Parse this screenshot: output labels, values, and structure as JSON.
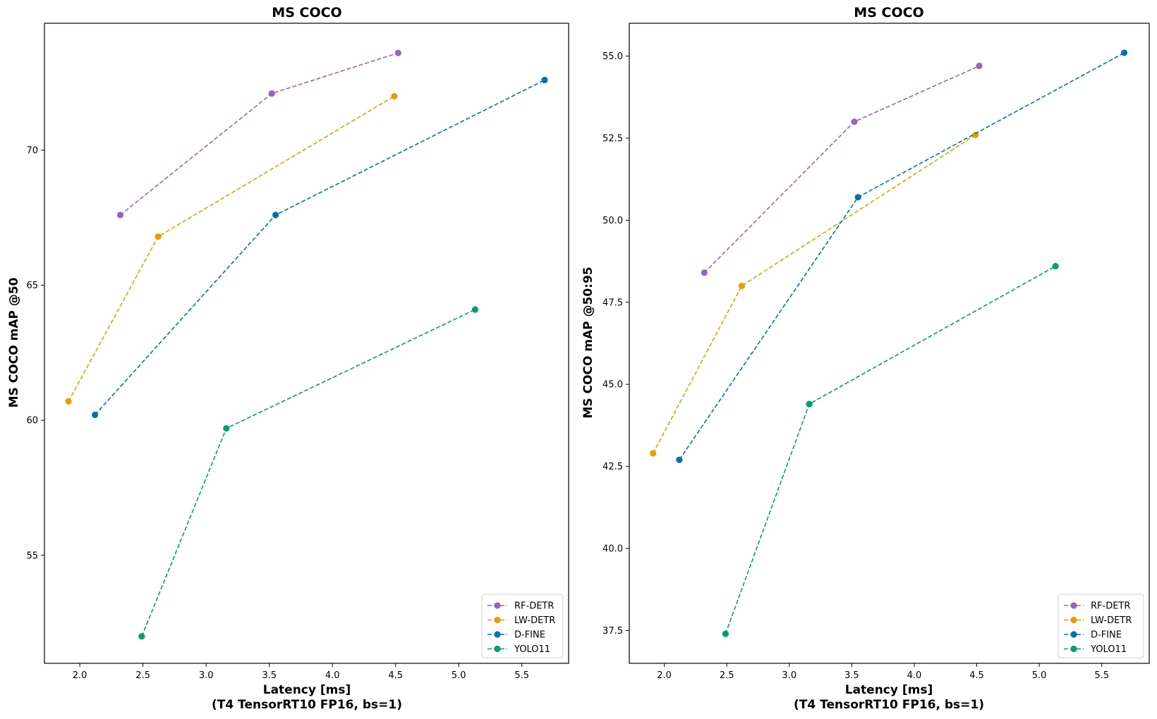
{
  "chart_data": [
    {
      "type": "line",
      "title": "MS COCO",
      "xlabel": "Latency [ms]",
      "xlabel2": "(T4 TensorRT10 FP16, bs=1)",
      "ylabel": "MS COCO mAP @50",
      "xlim": [
        1.72,
        5.87
      ],
      "ylim": [
        51.0,
        74.7
      ],
      "xticks": [
        "2.0",
        "2.5",
        "3.0",
        "3.5",
        "4.0",
        "4.5",
        "5.0",
        "5.5"
      ],
      "yticks": [
        "55",
        "60",
        "65",
        "70"
      ],
      "grid": false,
      "legend_position": "bottom-right",
      "series": [
        {
          "name": "RF-DETR",
          "color": "#9467bd",
          "x": [
            2.32,
            3.52,
            4.52
          ],
          "y": [
            67.6,
            72.1,
            73.6
          ]
        },
        {
          "name": "LW-DETR",
          "color": "#e69f00",
          "x": [
            1.91,
            2.62,
            4.49
          ],
          "y": [
            60.7,
            66.8,
            72.0
          ]
        },
        {
          "name": "D-FINE",
          "color": "#0072b2",
          "x": [
            2.12,
            3.55,
            5.68
          ],
          "y": [
            60.2,
            67.6,
            72.6
          ]
        },
        {
          "name": "YOLO11",
          "color": "#009e73",
          "x": [
            2.49,
            3.16,
            5.13
          ],
          "y": [
            52.0,
            59.7,
            64.1
          ]
        }
      ]
    },
    {
      "type": "line",
      "title": "MS COCO",
      "xlabel": "Latency [ms]",
      "xlabel2": "(T4 TensorRT10 FP16, bs=1)",
      "ylabel": "MS COCO mAP @50:95",
      "xlim": [
        1.72,
        5.88
      ],
      "ylim": [
        36.5,
        56.0
      ],
      "xticks": [
        "2.0",
        "2.5",
        "3.0",
        "3.5",
        "4.0",
        "4.5",
        "5.0",
        "5.5"
      ],
      "yticks": [
        "37.5",
        "40.0",
        "42.5",
        "45.0",
        "47.5",
        "50.0",
        "52.5",
        "55.0"
      ],
      "grid": false,
      "legend_position": "bottom-right",
      "series": [
        {
          "name": "RF-DETR",
          "color": "#9467bd",
          "x": [
            2.32,
            3.52,
            4.52
          ],
          "y": [
            48.4,
            53.0,
            54.7
          ]
        },
        {
          "name": "LW-DETR",
          "color": "#e69f00",
          "x": [
            1.91,
            2.62,
            4.49
          ],
          "y": [
            42.9,
            48.0,
            52.6
          ]
        },
        {
          "name": "D-FINE",
          "color": "#0072b2",
          "x": [
            2.12,
            3.55,
            5.68
          ],
          "y": [
            42.7,
            50.7,
            55.1
          ]
        },
        {
          "name": "YOLO11",
          "color": "#009e73",
          "x": [
            2.49,
            3.16,
            5.13
          ],
          "y": [
            37.4,
            44.4,
            48.6
          ]
        }
      ]
    }
  ]
}
